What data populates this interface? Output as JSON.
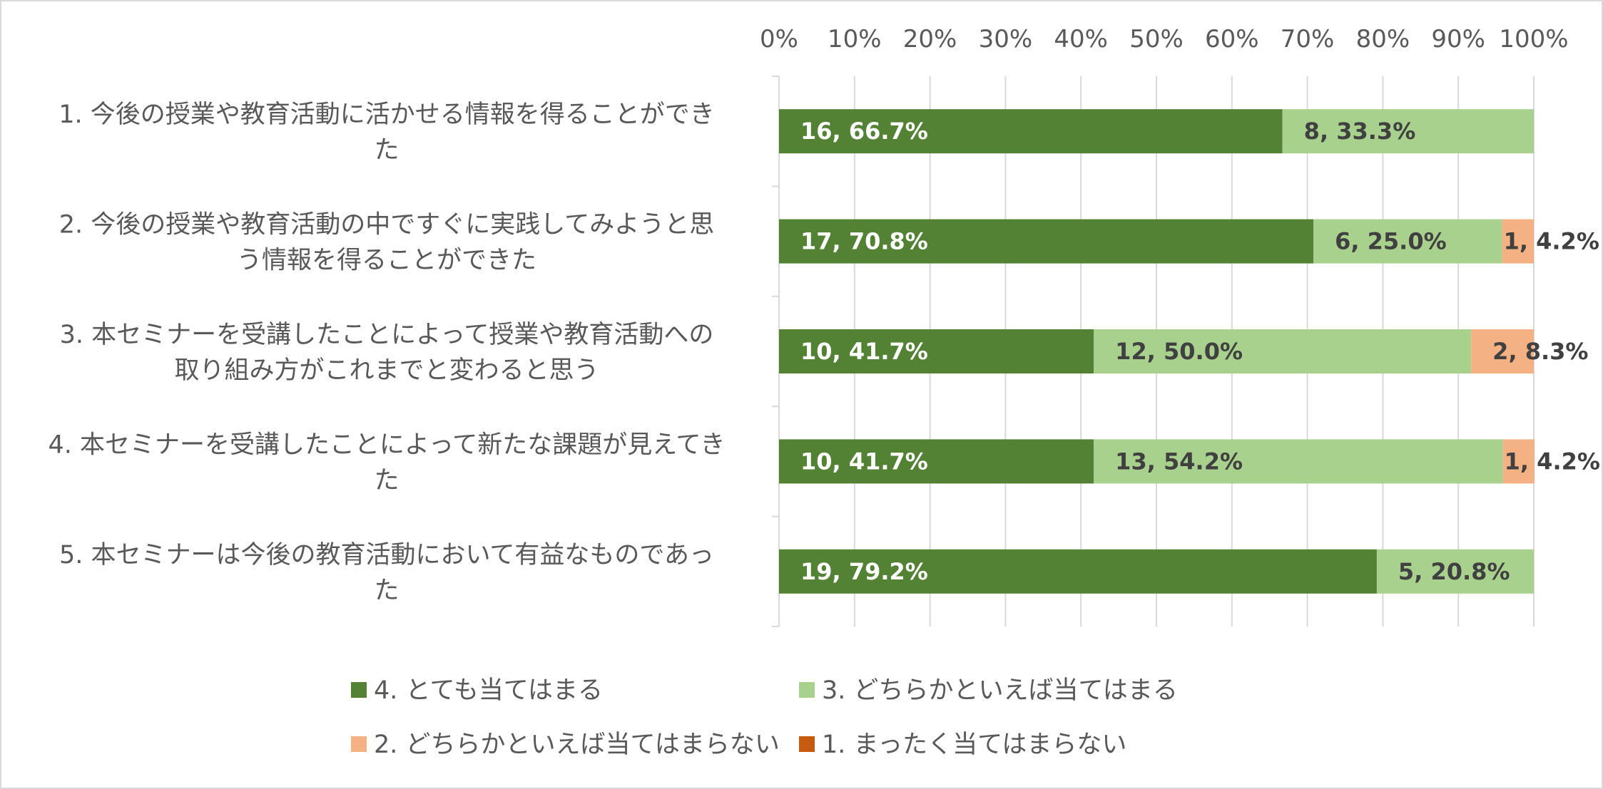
{
  "chart_data": {
    "type": "bar",
    "orientation": "horizontal",
    "stacked": "percent",
    "title": "",
    "xlabel": "",
    "ylabel": "",
    "xlim": [
      0,
      100
    ],
    "x_ticks": [
      "0%",
      "10%",
      "20%",
      "30%",
      "40%",
      "50%",
      "60%",
      "70%",
      "80%",
      "90%",
      "100%"
    ],
    "x_axis_position": "top",
    "grid": true,
    "legend_position": "bottom",
    "categories": [
      [
        "1. 今後の授業や教育活動に活かせる情報を得ることができ",
        "た"
      ],
      [
        "2. 今後の授業や教育活動の中ですぐに実践してみようと思",
        "う情報を得ることができた"
      ],
      [
        "3. 本セミナーを受講したことによって授業や教育活動への",
        "取り組み方がこれまでと変わると思う"
      ],
      [
        "4. 本セミナーを受講したことによって新たな課題が見えてき",
        "た"
      ],
      [
        "5. 本セミナーは今後の教育活動において有益なものであっ",
        "た"
      ]
    ],
    "series": [
      {
        "name": "4. とても当てはまる",
        "color": "#548235",
        "label_color": "#ffffff",
        "counts": [
          16,
          17,
          10,
          10,
          19
        ],
        "values": [
          66.7,
          70.8,
          41.7,
          41.7,
          79.2
        ],
        "labels": [
          "16, 66.7%",
          "17, 70.8%",
          "10, 41.7%",
          "10, 41.7%",
          "19, 79.2%"
        ]
      },
      {
        "name": "3. どちらかといえば当てはまる",
        "color": "#a9d18e",
        "label_color": "#404040",
        "counts": [
          8,
          6,
          12,
          13,
          5
        ],
        "values": [
          33.3,
          25.0,
          50.0,
          54.2,
          20.8
        ],
        "labels": [
          "8, 33.3%",
          "6, 25.0%",
          "12, 50.0%",
          "13, 54.2%",
          "5, 20.8%"
        ]
      },
      {
        "name": "2. どちらかといえば当てはまらない",
        "color": "#f4b183",
        "label_color": "#404040",
        "counts": [
          0,
          1,
          2,
          1,
          0
        ],
        "values": [
          0,
          4.2,
          8.3,
          4.2,
          0
        ],
        "labels": [
          "",
          "1, 4.2%",
          "2, 8.3%",
          "1, 4.2%",
          ""
        ]
      },
      {
        "name": "1. まったく当てはまらない",
        "color": "#c55a11",
        "label_color": "#404040",
        "counts": [
          0,
          0,
          0,
          0,
          0
        ],
        "values": [
          0,
          0,
          0,
          0,
          0
        ],
        "labels": [
          "",
          "",
          "",
          "",
          ""
        ]
      }
    ]
  }
}
